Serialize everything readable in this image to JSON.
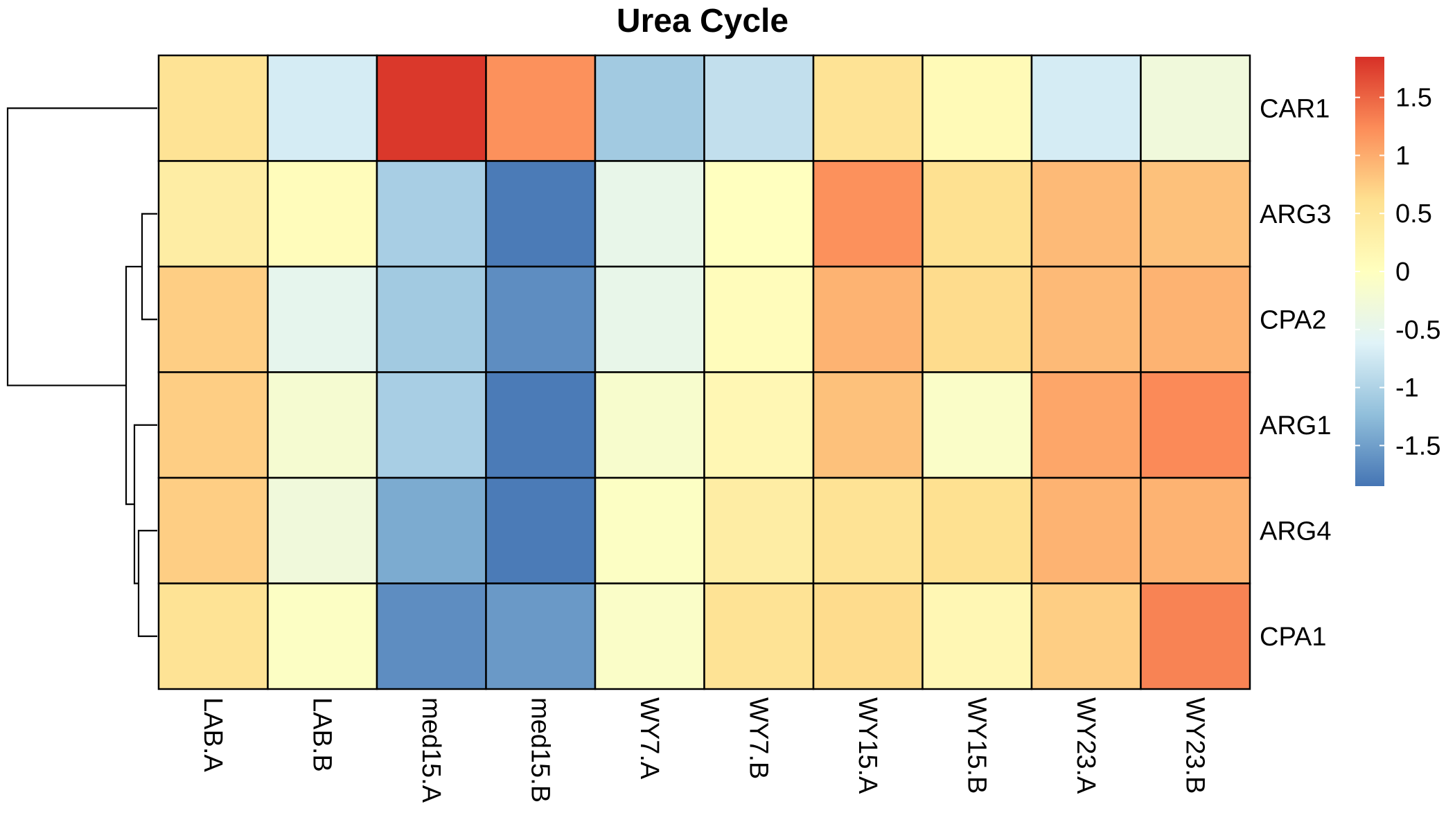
{
  "chart_data": {
    "type": "heatmap",
    "title": "Urea Cycle",
    "columns": [
      "LAB.A",
      "LAB.B",
      "med15.A",
      "med15.B",
      "WY7.A",
      "WY7.B",
      "WY15.A",
      "WY15.B",
      "WY23.A",
      "WY23.B"
    ],
    "rows": [
      "CAR1",
      "ARG3",
      "CPA2",
      "ARG1",
      "ARG4",
      "CPA1"
    ],
    "values": [
      [
        0.55,
        -0.7,
        1.8,
        1.2,
        -1.1,
        -0.85,
        0.55,
        0.1,
        -0.7,
        -0.3
      ],
      [
        0.35,
        0.05,
        -1.05,
        -1.8,
        -0.45,
        0.0,
        1.2,
        0.6,
        0.9,
        0.85
      ],
      [
        0.75,
        -0.5,
        -1.1,
        -1.65,
        -0.45,
        0.05,
        0.95,
        0.65,
        0.9,
        0.95
      ],
      [
        0.75,
        -0.2,
        -1.05,
        -1.8,
        -0.15,
        0.15,
        0.85,
        -0.1,
        1.05,
        1.25
      ],
      [
        0.75,
        -0.3,
        -1.4,
        -1.8,
        -0.05,
        0.35,
        0.55,
        0.6,
        0.95,
        0.95
      ],
      [
        0.55,
        -0.05,
        -1.65,
        -1.55,
        -0.1,
        0.55,
        0.65,
        0.15,
        0.75,
        1.3
      ]
    ],
    "color_scale": {
      "min": -1.85,
      "max": 1.85,
      "stops": [
        "#4575B4",
        "#91BFDB",
        "#E0F3F8",
        "#FFFFBF",
        "#FEE090",
        "#FC8D59",
        "#D73027"
      ],
      "ticks": [
        -1.5,
        -1,
        -0.5,
        0,
        0.5,
        1,
        1.5
      ],
      "tick_labels": [
        "-1.5",
        "-1",
        "-0.5",
        "0",
        "0.5",
        "1",
        "1.5"
      ]
    },
    "row_dendrogram": true,
    "legend_position": "right"
  }
}
